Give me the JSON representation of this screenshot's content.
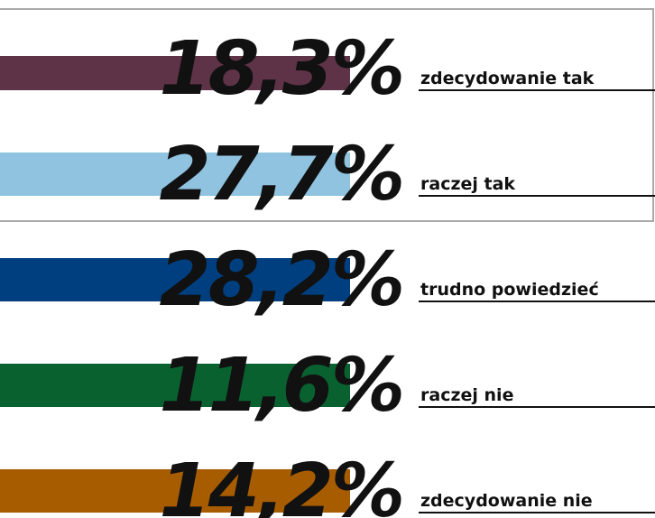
{
  "items": [
    {
      "percent": "18,3%",
      "label": "zdecydowanie tak",
      "color": "#5e3347"
    },
    {
      "percent": "27,7%",
      "label": "raczej tak",
      "color": "#8fc3e0"
    },
    {
      "percent": "28,2%",
      "label": "trudno powiedzieć",
      "color": "#003f7f"
    },
    {
      "percent": "11,6%",
      "label": "raczej nie",
      "color": "#0a6130"
    },
    {
      "percent": "14,2%",
      "label": "zdecydowanie nie",
      "color": "#a85c00"
    }
  ]
}
